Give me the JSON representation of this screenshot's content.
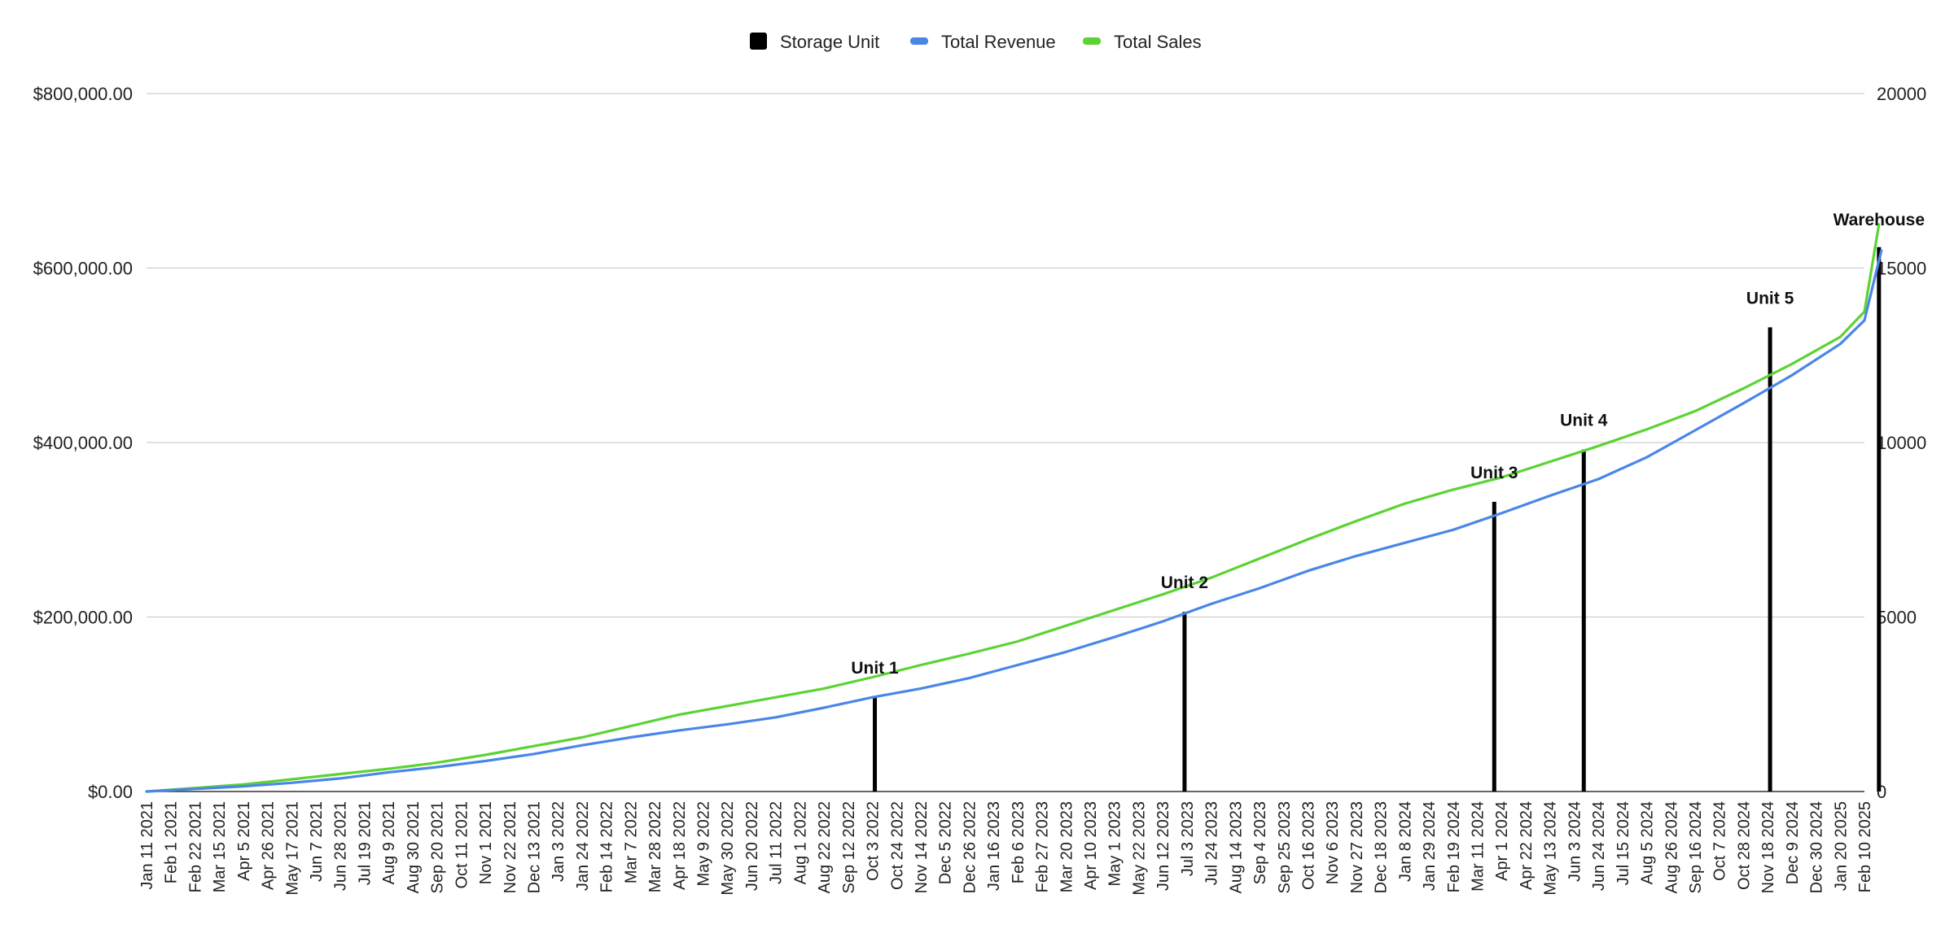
{
  "chart_data": {
    "type": "line",
    "legend": {
      "placement": "top-center",
      "entries": [
        {
          "name": "Storage Unit",
          "color": "#000000"
        },
        {
          "name": "Total Revenue",
          "color": "#4a86e8"
        },
        {
          "name": "Total Sales",
          "color": "#5bd333"
        }
      ]
    },
    "grid": true,
    "left_axis": {
      "ylim": [
        0,
        800000
      ],
      "ticks": [
        {
          "value": 0,
          "label": "$0.00"
        },
        {
          "value": 200000,
          "label": "$200,000.00"
        },
        {
          "value": 400000,
          "label": "$400,000.00"
        },
        {
          "value": 600000,
          "label": "$600,000.00"
        },
        {
          "value": 800000,
          "label": "$800,000.00"
        }
      ]
    },
    "right_axis": {
      "ylim": [
        0,
        20000
      ],
      "ticks": [
        {
          "value": 0,
          "label": "0"
        },
        {
          "value": 5000,
          "label": "5000"
        },
        {
          "value": 10000,
          "label": "10000"
        },
        {
          "value": 15000,
          "label": "15000"
        },
        {
          "value": 20000,
          "label": "20000"
        }
      ]
    },
    "x_ticks": [
      "Jan 11 2021",
      "Feb 1 2021",
      "Feb 22 2021",
      "Mar 15 2021",
      "Apr 5 2021",
      "Apr 26 2021",
      "May 17 2021",
      "Jun 7 2021",
      "Jun 28 2021",
      "Jul 19 2021",
      "Aug 9 2021",
      "Aug 30 2021",
      "Sep 20 2021",
      "Oct 11 2021",
      "Nov 1 2021",
      "Nov 22 2021",
      "Dec 13 2021",
      "Jan 3 2022",
      "Jan 24 2022",
      "Feb 14 2022",
      "Mar 7 2022",
      "Mar 28 2022",
      "Apr 18 2022",
      "May 9 2022",
      "May 30 2022",
      "Jun 20 2022",
      "Jul 11 2022",
      "Aug 1 2022",
      "Aug 22 2022",
      "Sep 12 2022",
      "Oct 3 2022",
      "Oct 24 2022",
      "Nov 14 2022",
      "Dec 5 2022",
      "Dec 26 2022",
      "Jan 16 2023",
      "Feb 6 2023",
      "Feb 27 2023",
      "Mar 20 2023",
      "Apr 10 2023",
      "May 1 2023",
      "May 22 2023",
      "Jun 12 2023",
      "Jul 3 2023",
      "Jul 24 2023",
      "Aug 14 2023",
      "Sep 4 2023",
      "Sep 25 2023",
      "Oct 16 2023",
      "Nov 6 2023",
      "Nov 27 2023",
      "Dec 18 2023",
      "Jan 8 2024",
      "Jan 29 2024",
      "Feb 19 2024",
      "Mar 11 2024",
      "Apr 1 2024",
      "Apr 22 2024",
      "May 13 2024",
      "Jun 3 2024",
      "Jun 24 2024",
      "Jul 15 2024",
      "Aug 5 2024",
      "Aug 26 2024",
      "Sep 16 2024",
      "Oct 7 2024",
      "Oct 28 2024",
      "Nov 18 2024",
      "Dec 9 2024",
      "Dec 30 2024",
      "Jan 20 2025",
      "Feb 10 2025"
    ],
    "series": [
      {
        "name": "Total Sales",
        "axis": "left",
        "color": "#5bd333",
        "points": [
          [
            0,
            0
          ],
          [
            2,
            4000
          ],
          [
            4,
            8000
          ],
          [
            6,
            14000
          ],
          [
            8,
            20000
          ],
          [
            10,
            26000
          ],
          [
            12,
            33000
          ],
          [
            14,
            42000
          ],
          [
            16,
            52000
          ],
          [
            18,
            62000
          ],
          [
            20,
            75000
          ],
          [
            22,
            88000
          ],
          [
            24,
            98000
          ],
          [
            26,
            108000
          ],
          [
            28,
            118000
          ],
          [
            30,
            131000
          ],
          [
            32,
            145000
          ],
          [
            34,
            158000
          ],
          [
            36,
            172000
          ],
          [
            38,
            190000
          ],
          [
            40,
            208000
          ],
          [
            42,
            226000
          ],
          [
            44,
            245000
          ],
          [
            46,
            267000
          ],
          [
            48,
            289000
          ],
          [
            50,
            310000
          ],
          [
            52,
            330000
          ],
          [
            54,
            346000
          ],
          [
            56,
            360000
          ],
          [
            58,
            378000
          ],
          [
            60,
            396000
          ],
          [
            62,
            415000
          ],
          [
            64,
            436000
          ],
          [
            66,
            462000
          ],
          [
            68,
            490000
          ],
          [
            70,
            521000
          ],
          [
            71,
            550000
          ],
          [
            71.6,
            650000
          ]
        ]
      },
      {
        "name": "Total Revenue",
        "axis": "left",
        "color": "#4a86e8",
        "points": [
          [
            0,
            0
          ],
          [
            2,
            3000
          ],
          [
            4,
            6000
          ],
          [
            6,
            10000
          ],
          [
            8,
            15000
          ],
          [
            10,
            22000
          ],
          [
            12,
            28000
          ],
          [
            14,
            35000
          ],
          [
            16,
            43000
          ],
          [
            18,
            53000
          ],
          [
            20,
            62000
          ],
          [
            22,
            70000
          ],
          [
            24,
            77000
          ],
          [
            26,
            85000
          ],
          [
            28,
            96000
          ],
          [
            30,
            108000
          ],
          [
            32,
            118000
          ],
          [
            34,
            130000
          ],
          [
            36,
            145000
          ],
          [
            38,
            160000
          ],
          [
            40,
            177000
          ],
          [
            42,
            195000
          ],
          [
            44,
            215000
          ],
          [
            46,
            233000
          ],
          [
            48,
            253000
          ],
          [
            50,
            270000
          ],
          [
            52,
            285000
          ],
          [
            54,
            300000
          ],
          [
            56,
            319000
          ],
          [
            58,
            339000
          ],
          [
            60,
            358000
          ],
          [
            62,
            383000
          ],
          [
            64,
            414000
          ],
          [
            66,
            445000
          ],
          [
            68,
            477000
          ],
          [
            70,
            513000
          ],
          [
            71,
            540000
          ],
          [
            71.7,
            620000
          ]
        ]
      },
      {
        "name": "Storage Unit",
        "axis": "right",
        "color": "#000000",
        "marker": "vertical-bar",
        "points": [
          {
            "x": 30.1,
            "value": 2700,
            "label": "Unit 1"
          },
          {
            "x": 42.9,
            "value": 5150,
            "label": "Unit 2"
          },
          {
            "x": 55.7,
            "value": 8300,
            "label": "Unit 3"
          },
          {
            "x": 59.4,
            "value": 9800,
            "label": "Unit 4"
          },
          {
            "x": 67.1,
            "value": 13300,
            "label": "Unit 5"
          },
          {
            "x": 71.6,
            "value": 15600,
            "label": "Warehouse"
          }
        ]
      }
    ]
  }
}
